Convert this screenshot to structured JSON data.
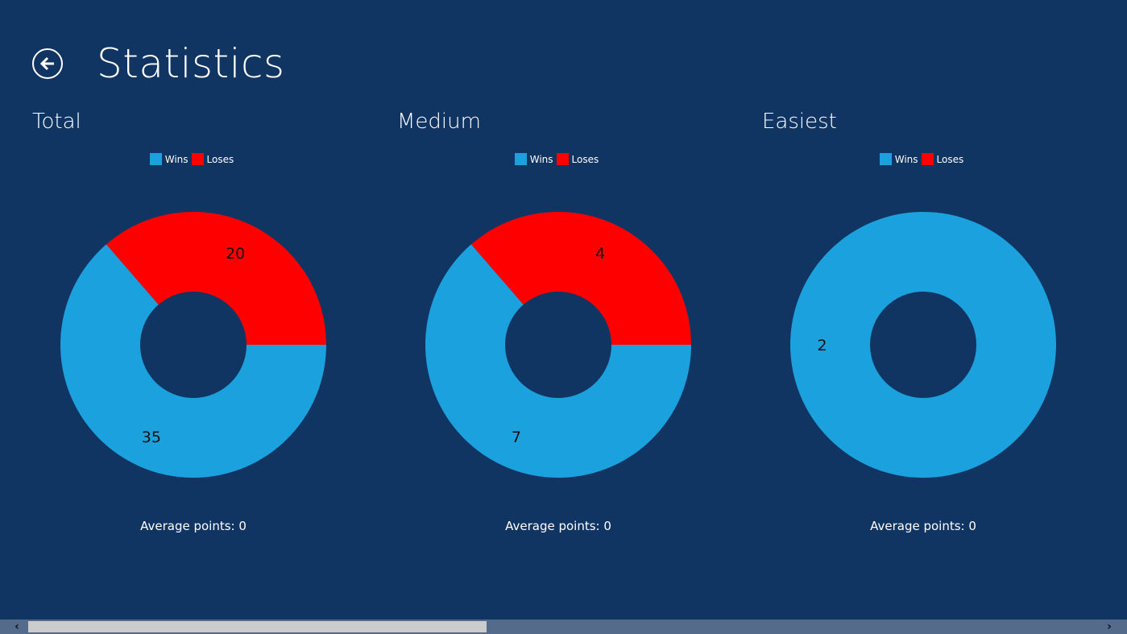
{
  "header": {
    "title": "Statistics",
    "back_icon": "back-arrow-icon"
  },
  "legend": {
    "wins": "Wins",
    "loses": "Loses"
  },
  "colors": {
    "background": "#113562",
    "wins": "#1aa1de",
    "loses": "#ff0000"
  },
  "chart_data": [
    {
      "type": "pie",
      "donut": true,
      "title": "Total",
      "categories": [
        "Wins",
        "Loses"
      ],
      "values": [
        35,
        20
      ],
      "footer": "Average points: 0"
    },
    {
      "type": "pie",
      "donut": true,
      "title": "Medium",
      "categories": [
        "Wins",
        "Loses"
      ],
      "values": [
        7,
        4
      ],
      "footer": "Average points: 0"
    },
    {
      "type": "pie",
      "donut": true,
      "title": "Easiest",
      "categories": [
        "Wins",
        "Loses"
      ],
      "values": [
        2,
        0
      ],
      "footer": "Average points: 0"
    }
  ]
}
